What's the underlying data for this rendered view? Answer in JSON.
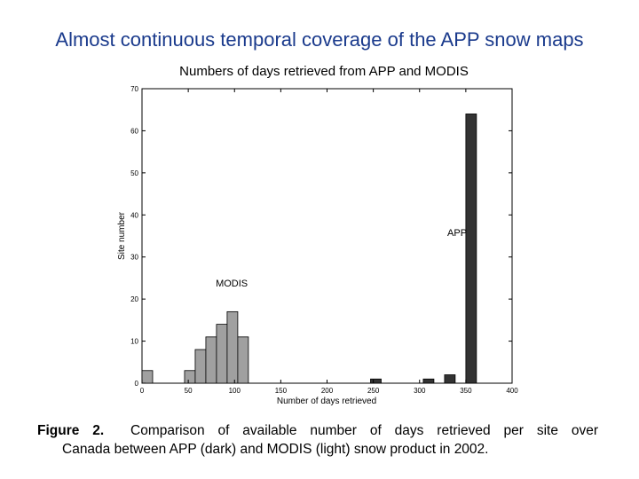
{
  "slide_title": "Almost continuous temporal coverage of the APP snow maps",
  "caption": {
    "label": "Figure 2.",
    "line1": "Comparison of available number of days retrieved per site over",
    "line2": "Canada between APP (dark) and MODIS (light) snow product in 2002."
  },
  "colors": {
    "title": "#1a3a8c",
    "modis": "#a0a0a0",
    "app": "#333333"
  },
  "chart_data": {
    "type": "bar",
    "title": "Numbers of days retrieved from APP and MODIS",
    "xlabel": "Number of days retrieved",
    "ylabel": "Site number",
    "xlim": [
      0,
      400
    ],
    "ylim": [
      0,
      70
    ],
    "xticks": [
      0,
      50,
      100,
      150,
      200,
      250,
      300,
      350,
      400
    ],
    "yticks": [
      0,
      10,
      20,
      30,
      40,
      50,
      60,
      70
    ],
    "bin_width": 11.5,
    "annotations": [
      {
        "text": "MODIS",
        "x": 97,
        "y": 23
      },
      {
        "text": "APP",
        "x": 330,
        "y": 35
      }
    ],
    "series": [
      {
        "name": "MODIS",
        "color": "#a0a0a0",
        "bins": [
          {
            "x": 0,
            "value": 3
          },
          {
            "x": 46,
            "value": 3
          },
          {
            "x": 57.5,
            "value": 8
          },
          {
            "x": 69,
            "value": 11
          },
          {
            "x": 80.5,
            "value": 14
          },
          {
            "x": 92,
            "value": 17
          },
          {
            "x": 103.5,
            "value": 11
          }
        ]
      },
      {
        "name": "APP",
        "color": "#333333",
        "bins": [
          {
            "x": 247,
            "value": 1
          },
          {
            "x": 304,
            "value": 1
          },
          {
            "x": 327,
            "value": 2
          },
          {
            "x": 350,
            "value": 64
          }
        ]
      }
    ]
  }
}
